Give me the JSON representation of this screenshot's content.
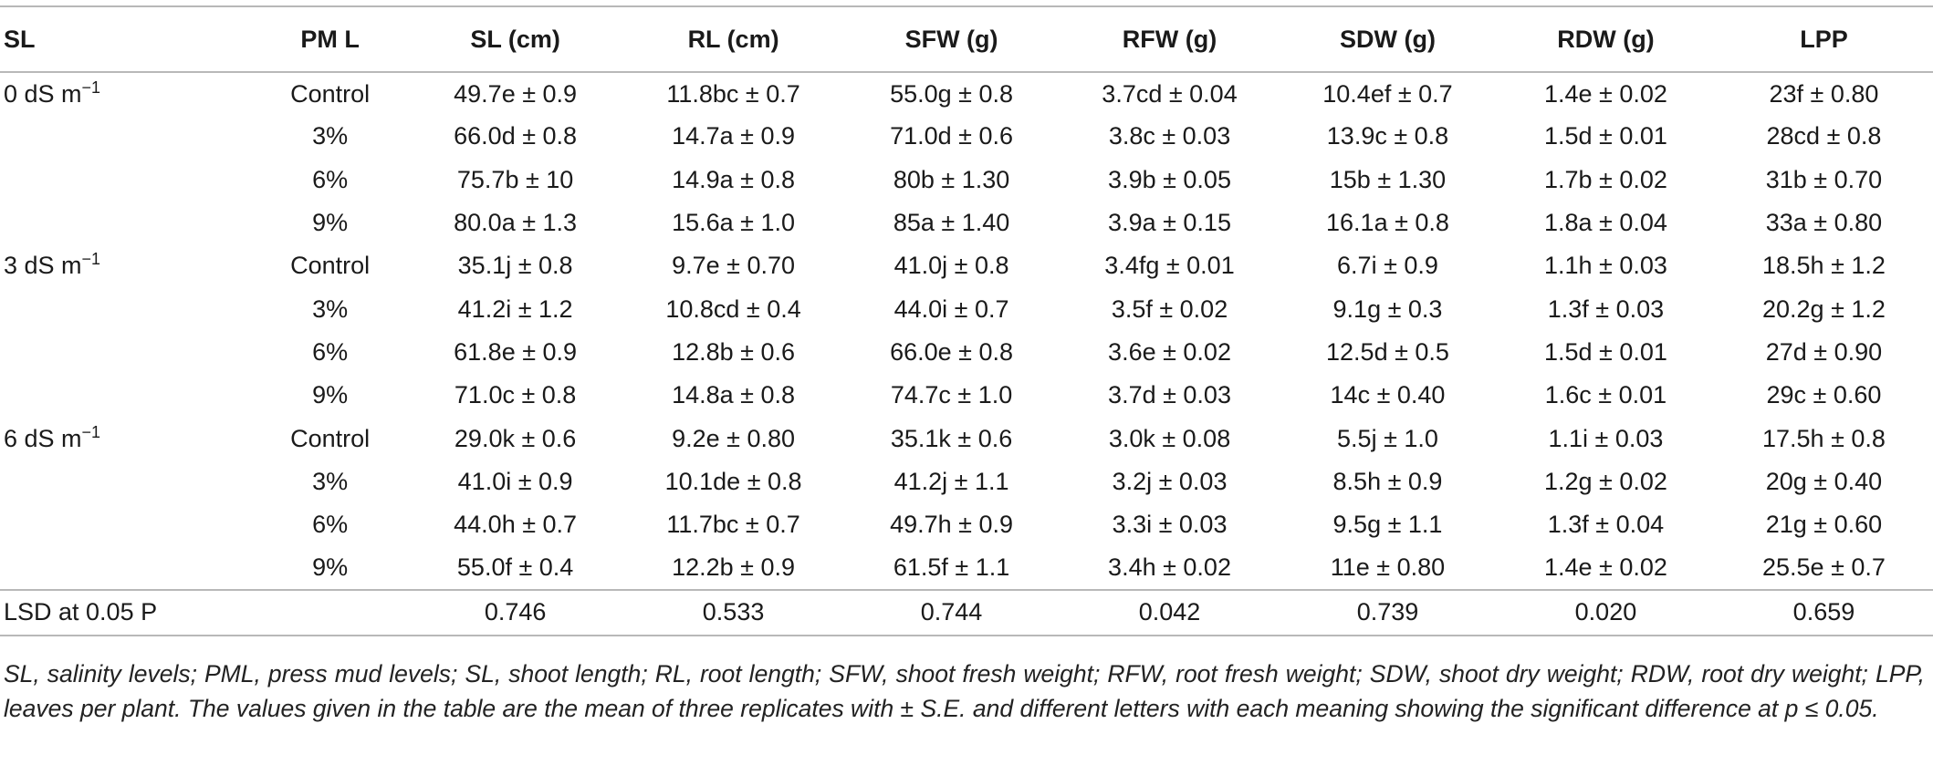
{
  "table": {
    "headers": [
      "SL",
      "PM L",
      "SL (cm)",
      "RL (cm)",
      "SFW (g)",
      "RFW (g)",
      "SDW (g)",
      "RDW (g)",
      "LPP"
    ],
    "rows": [
      {
        "sl": "0 dS m",
        "sl_sup": "−1",
        "pml": "Control",
        "v": [
          "49.7e ± 0.9",
          "11.8bc ± 0.7",
          "55.0g ± 0.8",
          "3.7cd ± 0.04",
          "10.4ef ± 0.7",
          "1.4e ± 0.02",
          "23f ± 0.80"
        ]
      },
      {
        "sl": "",
        "sl_sup": "",
        "pml": "3%",
        "v": [
          "66.0d ± 0.8",
          "14.7a ± 0.9",
          "71.0d ± 0.6",
          "3.8c ± 0.03",
          "13.9c ± 0.8",
          "1.5d ± 0.01",
          "28cd ± 0.8"
        ]
      },
      {
        "sl": "",
        "sl_sup": "",
        "pml": "6%",
        "v": [
          "75.7b ± 10",
          "14.9a ± 0.8",
          "80b ± 1.30",
          "3.9b ± 0.05",
          "15b ± 1.30",
          "1.7b ± 0.02",
          "31b ± 0.70"
        ]
      },
      {
        "sl": "",
        "sl_sup": "",
        "pml": "9%",
        "v": [
          "80.0a ± 1.3",
          "15.6a ± 1.0",
          "85a ± 1.40",
          "3.9a ± 0.15",
          "16.1a ± 0.8",
          "1.8a ± 0.04",
          "33a ± 0.80"
        ]
      },
      {
        "sl": "3 dS m",
        "sl_sup": "−1",
        "pml": "Control",
        "v": [
          "35.1j ± 0.8",
          "9.7e ± 0.70",
          "41.0j ± 0.8",
          "3.4fg ± 0.01",
          "6.7i ± 0.9",
          "1.1h ± 0.03",
          "18.5h ± 1.2"
        ]
      },
      {
        "sl": "",
        "sl_sup": "",
        "pml": "3%",
        "v": [
          "41.2i ± 1.2",
          "10.8cd ± 0.4",
          "44.0i ± 0.7",
          "3.5f ± 0.02",
          "9.1g ± 0.3",
          "1.3f ± 0.03",
          "20.2g ± 1.2"
        ]
      },
      {
        "sl": "",
        "sl_sup": "",
        "pml": "6%",
        "v": [
          "61.8e ± 0.9",
          "12.8b ± 0.6",
          "66.0e ± 0.8",
          "3.6e ± 0.02",
          "12.5d ± 0.5",
          "1.5d ± 0.01",
          "27d ± 0.90"
        ]
      },
      {
        "sl": "",
        "sl_sup": "",
        "pml": "9%",
        "v": [
          "71.0c ± 0.8",
          "14.8a ± 0.8",
          "74.7c ± 1.0",
          "3.7d ± 0.03",
          "14c ± 0.40",
          "1.6c ± 0.01",
          "29c ± 0.60"
        ]
      },
      {
        "sl": "6 dS m",
        "sl_sup": "−1",
        "pml": "Control",
        "v": [
          "29.0k ± 0.6",
          "9.2e ± 0.80",
          "35.1k ± 0.6",
          "3.0k ± 0.08",
          "5.5j ± 1.0",
          "1.1i ± 0.03",
          "17.5h ± 0.8"
        ]
      },
      {
        "sl": "",
        "sl_sup": "",
        "pml": "3%",
        "v": [
          "41.0i ± 0.9",
          "10.1de ± 0.8",
          "41.2j ± 1.1",
          "3.2j ± 0.03",
          "8.5h ± 0.9",
          "1.2g ± 0.02",
          "20g ± 0.40"
        ]
      },
      {
        "sl": "",
        "sl_sup": "",
        "pml": "6%",
        "v": [
          "44.0h ± 0.7",
          "11.7bc ± 0.7",
          "49.7h ± 0.9",
          "3.3i ± 0.03",
          "9.5g ± 1.1",
          "1.3f ± 0.04",
          "21g ± 0.60"
        ]
      },
      {
        "sl": "",
        "sl_sup": "",
        "pml": "9%",
        "v": [
          "55.0f ± 0.4",
          "12.2b ± 0.9",
          "61.5f ± 1.1",
          "3.4h ± 0.02",
          "11e ± 0.80",
          "1.4e ± 0.02",
          "25.5e ± 0.7"
        ]
      }
    ],
    "lsd": {
      "label": "LSD at 0.05 P",
      "values": [
        "0.746",
        "0.533",
        "0.744",
        "0.042",
        "0.739",
        "0.020",
        "0.659"
      ]
    }
  },
  "caption": "SL, salinity levels; PML, press mud levels; SL, shoot length; RL, root length; SFW, shoot fresh weight; RFW, root fresh weight; SDW, shoot dry weight; RDW, root dry weight; LPP, leaves per plant. The values given in the table are the mean of three replicates with ± S.E. and different letters with each meaning showing the significant difference at p ≤ 0.05."
}
